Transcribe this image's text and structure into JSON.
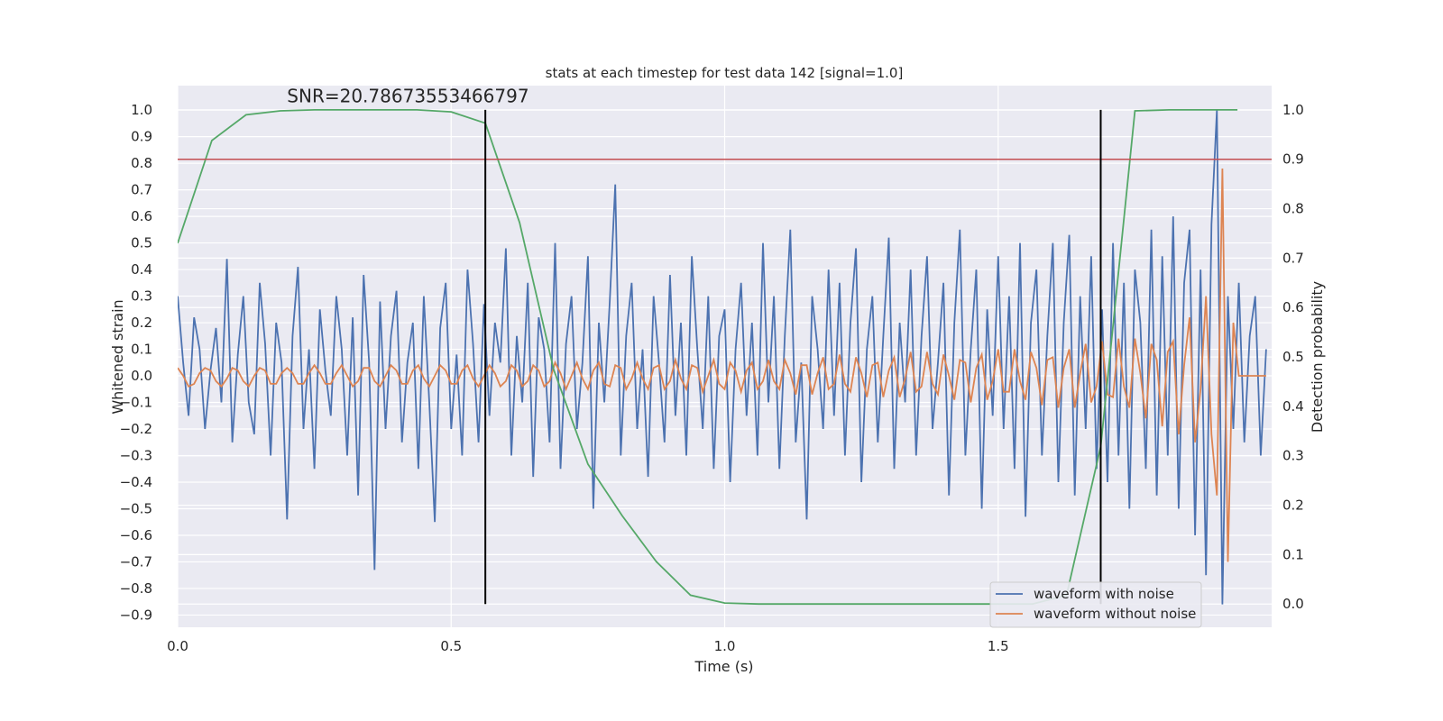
{
  "chart_data": {
    "type": "line",
    "title": "stats at each timestep for test data 142 [signal=1.0]",
    "x_label": "Time (s)",
    "y_label": "Whitened strain",
    "y2_label": "Detection probability",
    "xlim": [
      0,
      2.0
    ],
    "ylim": [
      -0.946,
      1.092
    ],
    "y2lim": [
      -0.047,
      1.049
    ],
    "xticks": [
      {
        "value": 0,
        "label": "0.0"
      },
      0.5,
      {
        "value": 1,
        "label": "1.0"
      },
      1.5
    ],
    "yticks": [
      {
        "value": -0.9,
        "label": "−0.9"
      },
      {
        "value": -0.8,
        "label": "−0.8"
      },
      {
        "value": -0.7,
        "label": "−0.7"
      },
      {
        "value": -0.6,
        "label": "−0.6"
      },
      {
        "value": -0.5,
        "label": "−0.5"
      },
      {
        "value": -0.4,
        "label": "−0.4"
      },
      {
        "value": -0.3,
        "label": "−0.3"
      },
      {
        "value": -0.2,
        "label": "−0.2"
      },
      {
        "value": -0.1,
        "label": "−0.1"
      },
      {
        "value": 0,
        "label": "0.0"
      },
      0.1,
      0.2,
      0.3,
      0.4,
      0.5,
      0.6,
      0.7,
      0.8,
      0.9,
      {
        "value": 1,
        "label": "1.0"
      }
    ],
    "y2ticks": [
      {
        "value": 0,
        "label": "0.0"
      },
      0.1,
      0.2,
      0.3,
      0.4,
      0.5,
      0.6,
      0.7,
      0.8,
      0.9,
      {
        "value": 1,
        "label": "1.0"
      }
    ],
    "grid": true,
    "legend": "lower right",
    "x": [
      0,
      0.01,
      0.02,
      0.03,
      0.04,
      0.05,
      0.06,
      0.07,
      0.08,
      0.09,
      0.1,
      0.11,
      0.12,
      0.13,
      0.14,
      0.15,
      0.16,
      0.17,
      0.18,
      0.19,
      0.2,
      0.21,
      0.22,
      0.23,
      0.24,
      0.25,
      0.26,
      0.27,
      0.28,
      0.29,
      0.3,
      0.31,
      0.32,
      0.33,
      0.34,
      0.35,
      0.36,
      0.37,
      0.38,
      0.39,
      0.4,
      0.41,
      0.42,
      0.43,
      0.44,
      0.45,
      0.46,
      0.47,
      0.48,
      0.49,
      0.5,
      0.51,
      0.52,
      0.53,
      0.54,
      0.55,
      0.56,
      0.57,
      0.58,
      0.59,
      0.6,
      0.61,
      0.62,
      0.63,
      0.64,
      0.65,
      0.66,
      0.67,
      0.68,
      0.69,
      0.7,
      0.71,
      0.72,
      0.73,
      0.74,
      0.75,
      0.76,
      0.77,
      0.78,
      0.79,
      0.8,
      0.81,
      0.82,
      0.83,
      0.84,
      0.85,
      0.86,
      0.87,
      0.88,
      0.89,
      0.9,
      0.91,
      0.92,
      0.93,
      0.94,
      0.95,
      0.96,
      0.97,
      0.98,
      0.99,
      1,
      1.01,
      1.02,
      1.03,
      1.04,
      1.05,
      1.06,
      1.07,
      1.08,
      1.09,
      1.1,
      1.11,
      1.12,
      1.13,
      1.14,
      1.15,
      1.16,
      1.17,
      1.18,
      1.19,
      1.2,
      1.21,
      1.22,
      1.23,
      1.24,
      1.25,
      1.26,
      1.27,
      1.28,
      1.29,
      1.3,
      1.31,
      1.32,
      1.33,
      1.34,
      1.35,
      1.36,
      1.37,
      1.38,
      1.39,
      1.4,
      1.41,
      1.42,
      1.43,
      1.44,
      1.45,
      1.46,
      1.47,
      1.48,
      1.49,
      1.5,
      1.51,
      1.52,
      1.53,
      1.54,
      1.55,
      1.56,
      1.57,
      1.58,
      1.59,
      1.6,
      1.61,
      1.62,
      1.63,
      1.64,
      1.65,
      1.66,
      1.67,
      1.68,
      1.69,
      1.7,
      1.71,
      1.72,
      1.73,
      1.74,
      1.75,
      1.76,
      1.77,
      1.78,
      1.79,
      1.8,
      1.81,
      1.82,
      1.83,
      1.84,
      1.85,
      1.86,
      1.87,
      1.88,
      1.89,
      1.9,
      1.91,
      1.92,
      1.93,
      1.94,
      1.95,
      1.96,
      1.97,
      1.98,
      1.99
    ],
    "series": [
      {
        "name": "waveform with noise",
        "color": "#4c72b0",
        "values": [
          0.3,
          0.05,
          -0.15,
          0.22,
          0.1,
          -0.2,
          0.02,
          0.18,
          -0.1,
          0.44,
          -0.25,
          0.08,
          0.3,
          -0.1,
          -0.22,
          0.35,
          0.12,
          -0.3,
          0.2,
          0.05,
          -0.54,
          0.15,
          0.41,
          -0.2,
          0.1,
          -0.35,
          0.25,
          0.02,
          -0.15,
          0.3,
          0.1,
          -0.3,
          0.22,
          -0.45,
          0.38,
          0.05,
          -0.73,
          0.28,
          -0.2,
          0.15,
          0.32,
          -0.25,
          0.05,
          0.2,
          -0.35,
          0.3,
          -0.1,
          -0.55,
          0.18,
          0.35,
          -0.2,
          0.08,
          -0.3,
          0.4,
          0.12,
          -0.25,
          0.27,
          -0.15,
          0.2,
          0.05,
          0.48,
          -0.3,
          0.15,
          -0.1,
          0.35,
          -0.38,
          0.22,
          0.1,
          -0.25,
          0.5,
          -0.35,
          0.12,
          0.3,
          -0.2,
          0.05,
          0.45,
          -0.5,
          0.2,
          -0.1,
          0.28,
          0.72,
          -0.3,
          0.15,
          0.35,
          -0.2,
          0.1,
          -0.38,
          0.3,
          0.05,
          -0.25,
          0.38,
          -0.15,
          0.2,
          -0.3,
          0.45,
          0.1,
          -0.2,
          0.3,
          -0.35,
          0.15,
          0.25,
          -0.4,
          0.1,
          0.35,
          -0.15,
          0.2,
          -0.3,
          0.5,
          -0.1,
          0.3,
          -0.35,
          0.15,
          0.55,
          -0.25,
          0.05,
          -0.54,
          0.3,
          0.1,
          -0.2,
          0.4,
          -0.15,
          0.35,
          -0.3,
          0.2,
          0.48,
          -0.4,
          0.1,
          0.3,
          -0.25,
          0.15,
          0.52,
          -0.35,
          0.2,
          -0.1,
          0.4,
          -0.3,
          0.15,
          0.45,
          -0.2,
          0.05,
          0.35,
          -0.45,
          0.2,
          0.55,
          -0.3,
          0.1,
          0.4,
          -0.5,
          0.25,
          -0.15,
          0.45,
          -0.2,
          0.3,
          -0.35,
          0.5,
          -0.53,
          0.2,
          0.4,
          -0.3,
          0.15,
          0.5,
          -0.4,
          0.2,
          0.53,
          -0.45,
          0.3,
          -0.2,
          0.45,
          -0.35,
          0.25,
          -0.4,
          0.5,
          -0.3,
          0.35,
          -0.5,
          0.4,
          0.2,
          -0.35,
          0.55,
          -0.45,
          0.45,
          -0.3,
          0.6,
          -0.5,
          0.35,
          0.55,
          -0.6,
          0.4,
          -0.75,
          0.57,
          1.0,
          -0.86,
          0.3,
          -0.2,
          0.35,
          -0.25,
          0.15,
          0.3,
          -0.3,
          0.1
        ]
      },
      {
        "name": "waveform without noise",
        "color": "#dd8452",
        "values": [
          0.03,
          0.0,
          -0.04,
          -0.03,
          0.01,
          0.03,
          0.02,
          -0.02,
          -0.04,
          -0.01,
          0.03,
          0.02,
          -0.02,
          -0.04,
          0.0,
          0.03,
          0.02,
          -0.03,
          -0.03,
          0.01,
          0.03,
          0.01,
          -0.03,
          -0.03,
          0.01,
          0.04,
          0.01,
          -0.03,
          -0.03,
          0.01,
          0.04,
          0.0,
          -0.04,
          -0.02,
          0.03,
          0.03,
          -0.02,
          -0.04,
          0.0,
          0.04,
          0.02,
          -0.03,
          -0.03,
          0.02,
          0.04,
          -0.01,
          -0.04,
          0.0,
          0.04,
          0.02,
          -0.03,
          -0.03,
          0.02,
          0.04,
          -0.01,
          -0.04,
          0.0,
          0.04,
          0.01,
          -0.04,
          -0.02,
          0.04,
          0.02,
          -0.04,
          -0.02,
          0.04,
          0.02,
          -0.04,
          -0.02,
          0.05,
          0.01,
          -0.05,
          0.0,
          0.05,
          -0.01,
          -0.05,
          0.02,
          0.05,
          -0.03,
          -0.04,
          0.04,
          0.03,
          -0.05,
          -0.01,
          0.05,
          -0.01,
          -0.05,
          0.03,
          0.04,
          -0.05,
          -0.02,
          0.06,
          -0.01,
          -0.05,
          0.04,
          0.03,
          -0.06,
          0.0,
          0.06,
          -0.03,
          -0.05,
          0.05,
          0.02,
          -0.06,
          0.02,
          0.05,
          -0.05,
          -0.02,
          0.06,
          -0.02,
          -0.05,
          0.06,
          0.01,
          -0.07,
          0.04,
          0.04,
          -0.07,
          0.01,
          0.07,
          -0.05,
          -0.03,
          0.08,
          -0.03,
          -0.06,
          0.07,
          0.01,
          -0.08,
          0.04,
          0.05,
          -0.08,
          0.02,
          0.07,
          -0.08,
          -0.01,
          0.09,
          -0.06,
          -0.04,
          0.09,
          -0.03,
          -0.07,
          0.08,
          0.0,
          -0.09,
          0.06,
          0.05,
          -0.1,
          0.03,
          0.08,
          -0.09,
          -0.02,
          0.1,
          -0.06,
          -0.06,
          0.1,
          -0.02,
          -0.09,
          0.09,
          0.03,
          -0.11,
          0.06,
          0.07,
          -0.12,
          0.03,
          0.1,
          -0.12,
          0.01,
          0.12,
          -0.1,
          -0.04,
          0.13,
          -0.07,
          -0.08,
          0.14,
          -0.04,
          -0.12,
          0.14,
          0.01,
          -0.16,
          0.12,
          0.06,
          -0.19,
          0.09,
          0.13,
          -0.22,
          0.04,
          0.22,
          -0.25,
          -0.05,
          0.3,
          -0.22,
          -0.45,
          0.78,
          -0.7,
          0.2,
          0.0,
          0.0,
          0.0,
          0.0,
          0.0,
          0.0
        ]
      },
      {
        "color": "#55a868",
        "axis": "y2",
        "x": [
          0,
          0.0625,
          0.125,
          0.1875,
          0.25,
          0.3125,
          0.375,
          0.4375,
          0.5,
          0.5625,
          0.625,
          0.6875,
          0.75,
          0.8125,
          0.875,
          0.9375,
          1.0,
          1.0625,
          1.125,
          1.1875,
          1.25,
          1.3125,
          1.375,
          1.4375,
          1.5,
          1.5625,
          1.625,
          1.6875,
          1.75,
          1.8125,
          1.875,
          1.9375
        ],
        "values": [
          0.73,
          0.938,
          0.99,
          0.998,
          1.0,
          1.0,
          1.0,
          1.0,
          0.996,
          0.973,
          0.772,
          0.474,
          0.283,
          0.179,
          0.086,
          0.018,
          0.002,
          0.0,
          0.0,
          0.0,
          0.0,
          0.0,
          0.0,
          0.0,
          0.0,
          0.0,
          0.018,
          0.319,
          0.998,
          1.0,
          1.0,
          1.0
        ]
      }
    ],
    "hlines": [
      {
        "value": 0.9,
        "axis": "y2",
        "color": "#c44e52"
      }
    ],
    "vlines": [
      0.5625,
      1.6875
    ],
    "annotation": {
      "text": "SNR=20.78673553466797",
      "x": 0.2,
      "y": 1.03
    }
  }
}
